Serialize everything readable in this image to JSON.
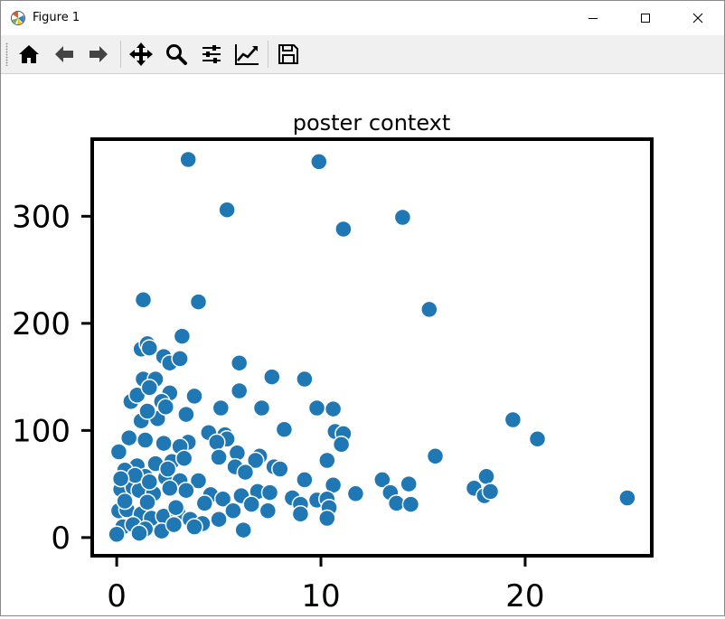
{
  "window": {
    "title": "Figure 1",
    "controls": [
      "minimize",
      "maximize",
      "close"
    ]
  },
  "toolbar": {
    "buttons": [
      {
        "icon": "home-icon",
        "label": "Home"
      },
      {
        "icon": "back-arrow-icon",
        "label": "Back"
      },
      {
        "icon": "forward-arrow-icon",
        "label": "Forward"
      },
      {
        "icon": "pan-move-icon",
        "label": "Pan"
      },
      {
        "icon": "zoom-magnifier-icon",
        "label": "Zoom"
      },
      {
        "icon": "configure-subplots-icon",
        "label": "Subplots"
      },
      {
        "icon": "edit-axis-icon",
        "label": "Customize"
      },
      {
        "icon": "save-floppy-icon",
        "label": "Save"
      }
    ]
  },
  "colors": {
    "marker": "#1f77b4",
    "marker_edge": "#ffffff",
    "axes": "#000000"
  },
  "chart_data": {
    "type": "scatter",
    "title": "poster context",
    "xlabel": "",
    "ylabel": "",
    "xlim": [
      -1.2,
      26.2
    ],
    "ylim": [
      -17,
      372
    ],
    "xticks": [
      0,
      10,
      20
    ],
    "yticks": [
      0,
      100,
      200,
      300
    ],
    "grid": false,
    "legend": "none",
    "points": [
      [
        3.5,
        353
      ],
      [
        9.9,
        351
      ],
      [
        5.4,
        306
      ],
      [
        14.0,
        299
      ],
      [
        11.1,
        288
      ],
      [
        1.3,
        222
      ],
      [
        4.0,
        220
      ],
      [
        15.3,
        213
      ],
      [
        3.2,
        188
      ],
      [
        1.2,
        176
      ],
      [
        1.5,
        181
      ],
      [
        2.3,
        169
      ],
      [
        1.6,
        177
      ],
      [
        2.6,
        163
      ],
      [
        3.1,
        167
      ],
      [
        6.0,
        163
      ],
      [
        7.6,
        150
      ],
      [
        9.2,
        148
      ],
      [
        1.3,
        148
      ],
      [
        1.9,
        148
      ],
      [
        6.0,
        137
      ],
      [
        0.7,
        127
      ],
      [
        1.0,
        133
      ],
      [
        1.6,
        140
      ],
      [
        2.6,
        135
      ],
      [
        2.2,
        127
      ],
      [
        3.8,
        132
      ],
      [
        5.1,
        121
      ],
      [
        7.1,
        121
      ],
      [
        9.8,
        121
      ],
      [
        10.6,
        120
      ],
      [
        1.2,
        109
      ],
      [
        2.0,
        111
      ],
      [
        1.5,
        118
      ],
      [
        3.4,
        115
      ],
      [
        2.4,
        122
      ],
      [
        19.4,
        110
      ],
      [
        8.2,
        101
      ],
      [
        10.7,
        99
      ],
      [
        11.1,
        97
      ],
      [
        20.6,
        92
      ],
      [
        4.5,
        98
      ],
      [
        5.3,
        96
      ],
      [
        5.4,
        92
      ],
      [
        4.9,
        89
      ],
      [
        3.5,
        89
      ],
      [
        2.3,
        88
      ],
      [
        1.4,
        91
      ],
      [
        0.6,
        93
      ],
      [
        3.1,
        85
      ],
      [
        11.0,
        87
      ],
      [
        15.6,
        76
      ],
      [
        0.1,
        80
      ],
      [
        1.0,
        67
      ],
      [
        1.9,
        69
      ],
      [
        2.7,
        71
      ],
      [
        3.3,
        74
      ],
      [
        5.0,
        75
      ],
      [
        5.9,
        79
      ],
      [
        7.0,
        76
      ],
      [
        7.7,
        66
      ],
      [
        8.0,
        64
      ],
      [
        6.8,
        72
      ],
      [
        10.3,
        72
      ],
      [
        1.4,
        57
      ],
      [
        0.4,
        63
      ],
      [
        2.4,
        56
      ],
      [
        3.1,
        53
      ],
      [
        4.0,
        53
      ],
      [
        5.8,
        66
      ],
      [
        6.3,
        61
      ],
      [
        9.2,
        54
      ],
      [
        18.1,
        57
      ],
      [
        13.0,
        54
      ],
      [
        14.3,
        50
      ],
      [
        10.6,
        49
      ],
      [
        0.2,
        45
      ],
      [
        0.8,
        47
      ],
      [
        1.1,
        44
      ],
      [
        1.8,
        41
      ],
      [
        2.6,
        46
      ],
      [
        3.4,
        44
      ],
      [
        4.6,
        40
      ],
      [
        5.2,
        36
      ],
      [
        6.1,
        39
      ],
      [
        6.9,
        43
      ],
      [
        7.5,
        42
      ],
      [
        8.6,
        37
      ],
      [
        9.0,
        31
      ],
      [
        9.8,
        35
      ],
      [
        10.3,
        36
      ],
      [
        11.7,
        41
      ],
      [
        13.4,
        42
      ],
      [
        13.7,
        32
      ],
      [
        14.4,
        31
      ],
      [
        17.5,
        46
      ],
      [
        18.0,
        39
      ],
      [
        18.3,
        43
      ],
      [
        25.0,
        37
      ],
      [
        10.4,
        28
      ],
      [
        7.4,
        25
      ],
      [
        0.1,
        25
      ],
      [
        0.5,
        26
      ],
      [
        1.2,
        22
      ],
      [
        1.7,
        18
      ],
      [
        2.3,
        20
      ],
      [
        3.0,
        23
      ],
      [
        3.6,
        17
      ],
      [
        4.2,
        13
      ],
      [
        5.0,
        17
      ],
      [
        5.7,
        25
      ],
      [
        6.6,
        31
      ],
      [
        9.0,
        22
      ],
      [
        10.3,
        18
      ],
      [
        0.3,
        10
      ],
      [
        0.8,
        12
      ],
      [
        1.4,
        8
      ],
      [
        2.2,
        6
      ],
      [
        2.8,
        12
      ],
      [
        3.8,
        10
      ],
      [
        0.0,
        3
      ],
      [
        6.2,
        7
      ],
      [
        0.4,
        34
      ],
      [
        1.5,
        33
      ],
      [
        2.9,
        28
      ],
      [
        4.3,
        32
      ],
      [
        0.9,
        58
      ],
      [
        1.6,
        52
      ],
      [
        2.5,
        64
      ],
      [
        1.1,
        4
      ],
      [
        0.2,
        55
      ]
    ]
  }
}
